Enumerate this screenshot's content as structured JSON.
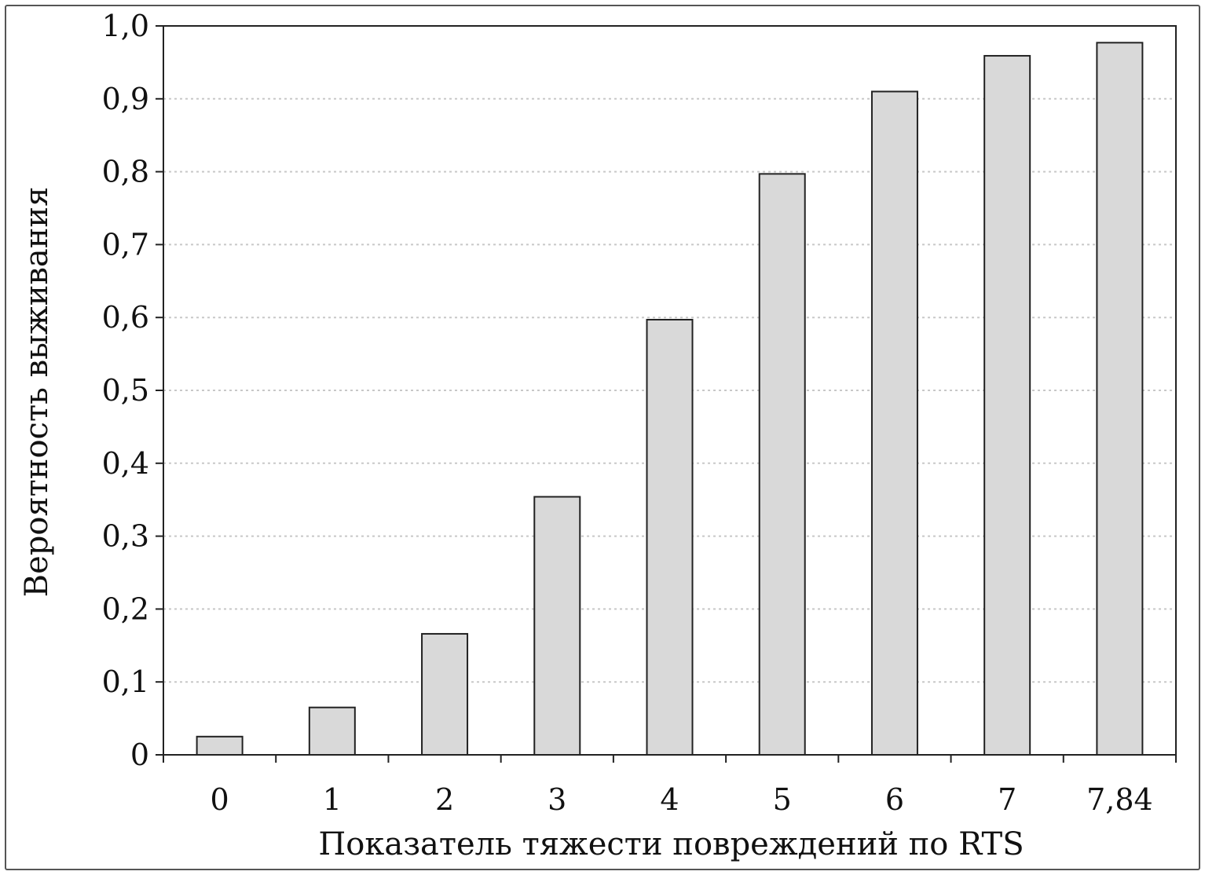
{
  "chart_data": {
    "type": "bar",
    "categories": [
      "0",
      "1",
      "2",
      "3",
      "4",
      "5",
      "6",
      "7",
      "7,84"
    ],
    "values": [
      0.025,
      0.065,
      0.166,
      0.354,
      0.597,
      0.797,
      0.91,
      0.959,
      0.977
    ],
    "xlabel": "Показатель тяжести повреждений по RTS",
    "ylabel": "Вероятность выживания",
    "ylim": [
      0,
      1.0
    ],
    "yticks": [
      0,
      0.1,
      0.2,
      0.3,
      0.4,
      0.5,
      0.6,
      0.7,
      0.8,
      0.9,
      1.0
    ],
    "ytick_labels": [
      "0",
      "0,1",
      "0,2",
      "0,3",
      "0,4",
      "0,5",
      "0,6",
      "0,7",
      "0,8",
      "0,9",
      "1,0"
    ],
    "grid": true,
    "colors": {
      "bar_fill": "#d9d9d9",
      "bar_edge": "#222222",
      "grid": "#c8c8c8",
      "axis": "#222222"
    }
  }
}
